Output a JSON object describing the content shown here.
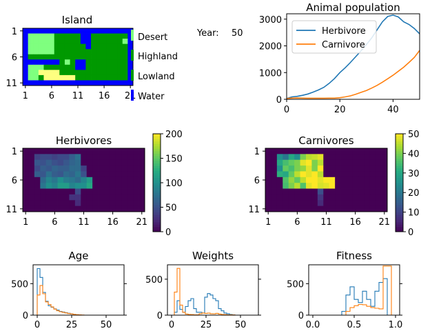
{
  "island": {
    "title": "Island",
    "ytick_labels": [
      "1",
      "6",
      "11"
    ],
    "xtick_labels": [
      "1",
      "6",
      "11",
      "16",
      "21"
    ],
    "terrain_colors": {
      "W": "#0000ff",
      "D": "#7fff7f",
      "H": "#7fff7f",
      "L": "#009900",
      "S": "#ffff80"
    },
    "map": [
      "WWWWWWWWWWWWWWWWWWWWW",
      "WDDDDDLLLLLWWLLLLLLLW",
      "WDDDDDLLLLLWWLLLLLLDW",
      "WDDDDDLLLLLLWLLLLLLLW",
      "WDDDDDLLLLLLLLLLLLLLW",
      "WLLLLLLLLLLLLLLLLLLLW",
      "WWWWWWWLDLWWLLLLLLLLW",
      "WDDDLLLLLLWWLLLLLLLLW",
      "WDDSSSSLLLLLLLLLLLLLW",
      "WDDLSSSSSSLLLLLLLLLLW",
      "WWWWWWWWWWWWWWWWWWWWW"
    ]
  },
  "legend": {
    "items": [
      {
        "label": "Desert",
        "color": "#7fff7f"
      },
      {
        "label": "Highland",
        "color": "#009900"
      },
      {
        "label": "Lowland",
        "color": "#009900"
      },
      {
        "label": "Water",
        "color": "#0000ff"
      }
    ]
  },
  "year": {
    "label": "Year:",
    "value": "50"
  },
  "chart_data": [
    {
      "type": "line",
      "title": "Animal population",
      "xlim": [
        0,
        50
      ],
      "ylim": [
        0,
        3200
      ],
      "xticks": [
        0,
        20,
        40
      ],
      "yticks": [
        0,
        1000,
        2000,
        3000
      ],
      "x": [
        0,
        2,
        4,
        6,
        8,
        10,
        12,
        14,
        16,
        18,
        20,
        22,
        24,
        26,
        28,
        30,
        32,
        34,
        36,
        38,
        40,
        42,
        44,
        46,
        48,
        50
      ],
      "series": [
        {
          "name": "Herbivore",
          "color": "#1f77b4",
          "values": [
            30,
            90,
            110,
            150,
            200,
            270,
            350,
            450,
            600,
            780,
            1000,
            1180,
            1380,
            1600,
            1820,
            2050,
            2300,
            2600,
            2900,
            3100,
            3150,
            3080,
            2900,
            2800,
            2650,
            2450
          ]
        },
        {
          "name": "Carnivore",
          "color": "#ff7f0e",
          "values": [
            30,
            45,
            50,
            45,
            40,
            40,
            40,
            40,
            45,
            45,
            60,
            90,
            130,
            190,
            260,
            330,
            420,
            520,
            640,
            770,
            900,
            1050,
            1200,
            1380,
            1570,
            1830
          ]
        }
      ]
    },
    {
      "type": "heatmap",
      "title": "Herbivores",
      "vmin": 0,
      "vmax": 200,
      "colorbar_ticks": [
        "0",
        "50",
        "100",
        "150",
        "200"
      ],
      "ytick_labels": [
        "1",
        "6",
        "11"
      ],
      "xtick_labels": [
        "1",
        "6",
        "11",
        "16",
        "21"
      ],
      "rows": [
        [
          0,
          0,
          0,
          0,
          0,
          0,
          0,
          0,
          0,
          0,
          0,
          0,
          0,
          0,
          0,
          0,
          0,
          0,
          0,
          0,
          0
        ],
        [
          0,
          0,
          40,
          45,
          45,
          40,
          45,
          45,
          60,
          75,
          0,
          0,
          0,
          0,
          0,
          0,
          0,
          0,
          0,
          0,
          0
        ],
        [
          0,
          0,
          55,
          50,
          60,
          50,
          45,
          55,
          65,
          70,
          0,
          0,
          0,
          0,
          0,
          0,
          0,
          0,
          0,
          0,
          0
        ],
        [
          0,
          0,
          45,
          60,
          55,
          65,
          60,
          60,
          70,
          70,
          40,
          0,
          0,
          0,
          0,
          0,
          0,
          0,
          0,
          0,
          0
        ],
        [
          0,
          0,
          60,
          55,
          75,
          60,
          55,
          70,
          65,
          80,
          50,
          0,
          0,
          0,
          0,
          0,
          0,
          0,
          0,
          0,
          0
        ],
        [
          0,
          0,
          0,
          70,
          90,
          80,
          100,
          85,
          80,
          70,
          90,
          110,
          0,
          0,
          0,
          0,
          0,
          0,
          0,
          0,
          0
        ],
        [
          0,
          0,
          0,
          80,
          100,
          90,
          110,
          110,
          90,
          100,
          100,
          120,
          0,
          0,
          0,
          0,
          0,
          0,
          0,
          0,
          0
        ],
        [
          0,
          0,
          0,
          0,
          0,
          0,
          0,
          0,
          0,
          45,
          0,
          0,
          0,
          0,
          0,
          0,
          0,
          0,
          0,
          0,
          0
        ],
        [
          0,
          0,
          0,
          0,
          0,
          0,
          0,
          0,
          30,
          30,
          0,
          0,
          0,
          0,
          0,
          0,
          0,
          0,
          0,
          0,
          0
        ],
        [
          0,
          0,
          0,
          0,
          0,
          0,
          0,
          0,
          0,
          25,
          0,
          0,
          0,
          0,
          0,
          0,
          0,
          0,
          0,
          0,
          0
        ],
        [
          0,
          0,
          0,
          0,
          0,
          0,
          0,
          0,
          0,
          0,
          0,
          0,
          0,
          0,
          0,
          0,
          0,
          0,
          0,
          0,
          0
        ]
      ]
    },
    {
      "type": "heatmap",
      "title": "Carnivores",
      "vmin": 0,
      "vmax": 50,
      "colorbar_ticks": [
        "0",
        "10",
        "20",
        "30",
        "40",
        "50"
      ],
      "ytick_labels": [
        "1",
        "6",
        "11"
      ],
      "xtick_labels": [
        "1",
        "6",
        "11",
        "16",
        "21"
      ],
      "rows": [
        [
          0,
          0,
          0,
          0,
          0,
          0,
          0,
          0,
          0,
          0,
          0,
          0,
          0,
          0,
          0,
          0,
          0,
          0,
          0,
          0,
          0
        ],
        [
          0,
          0,
          25,
          20,
          30,
          25,
          40,
          45,
          46,
          48,
          0,
          0,
          0,
          0,
          0,
          0,
          0,
          0,
          0,
          0,
          0
        ],
        [
          0,
          0,
          30,
          35,
          38,
          40,
          48,
          50,
          40,
          45,
          0,
          0,
          0,
          0,
          0,
          0,
          0,
          0,
          0,
          0,
          0
        ],
        [
          0,
          0,
          25,
          38,
          35,
          40,
          42,
          48,
          40,
          50,
          0,
          0,
          0,
          0,
          0,
          0,
          0,
          0,
          0,
          0,
          0
        ],
        [
          0,
          0,
          32,
          30,
          38,
          45,
          50,
          48,
          50,
          45,
          0,
          0,
          0,
          0,
          0,
          0,
          0,
          0,
          0,
          0,
          0
        ],
        [
          0,
          0,
          0,
          36,
          42,
          38,
          45,
          50,
          50,
          48,
          50,
          50,
          0,
          0,
          0,
          0,
          0,
          0,
          0,
          0,
          0
        ],
        [
          0,
          0,
          0,
          35,
          40,
          45,
          36,
          48,
          50,
          47,
          48,
          50,
          0,
          0,
          0,
          0,
          0,
          0,
          0,
          0,
          0
        ],
        [
          0,
          0,
          0,
          0,
          0,
          0,
          0,
          0,
          0,
          12,
          0,
          0,
          0,
          0,
          0,
          0,
          0,
          0,
          0,
          0,
          0
        ],
        [
          0,
          0,
          0,
          0,
          0,
          0,
          0,
          0,
          0,
          8,
          0,
          0,
          0,
          0,
          0,
          0,
          0,
          0,
          0,
          0,
          0
        ],
        [
          0,
          0,
          0,
          0,
          0,
          0,
          0,
          0,
          0,
          6,
          0,
          0,
          0,
          0,
          0,
          0,
          0,
          0,
          0,
          0,
          0
        ],
        [
          0,
          0,
          0,
          0,
          0,
          0,
          0,
          0,
          0,
          0,
          0,
          0,
          0,
          0,
          0,
          0,
          0,
          0,
          0,
          0,
          0
        ]
      ]
    },
    {
      "type": "histogram",
      "title": "Age",
      "xlim": [
        -3,
        63
      ],
      "ylim": [
        0,
        800
      ],
      "xticks": [
        0,
        25,
        50
      ],
      "yticks": [
        0,
        500
      ],
      "bin_start": 0,
      "bin_width": 2,
      "series": [
        {
          "name": "Herbivore",
          "color": "#1f77b4",
          "values": [
            740,
            600,
            360,
            220,
            150,
            125,
            100,
            80,
            60,
            50,
            40,
            30,
            20,
            12,
            6,
            3,
            0
          ]
        },
        {
          "name": "Carnivore",
          "color": "#ff7f0e",
          "values": [
            320,
            470,
            340,
            210,
            170,
            130,
            95,
            70,
            55,
            45,
            35,
            25,
            20,
            12,
            8,
            5,
            2
          ]
        }
      ]
    },
    {
      "type": "histogram",
      "title": "Weights",
      "xlim": [
        -3,
        63
      ],
      "ylim": [
        0,
        700
      ],
      "xticks": [
        0,
        25,
        50
      ],
      "yticks": [
        0,
        500
      ],
      "bin_start": 2,
      "bin_width": 2,
      "series": [
        {
          "name": "Herbivore",
          "color": "#1f77b4",
          "values": [
            40,
            200,
            80,
            40,
            120,
            200,
            230,
            90,
            40,
            40,
            30,
            250,
            300,
            280,
            230,
            200,
            90,
            60,
            30,
            20,
            10,
            5
          ]
        },
        {
          "name": "Carnivore",
          "color": "#ff7f0e",
          "values": [
            320,
            650,
            140,
            40,
            15,
            10,
            8,
            5,
            5,
            20,
            30,
            25,
            28,
            20,
            18,
            25,
            15,
            10,
            8,
            5,
            5,
            3
          ]
        }
      ]
    },
    {
      "type": "histogram",
      "title": "Fitness",
      "xlim": [
        -0.05,
        1.05
      ],
      "ylim": [
        0,
        800
      ],
      "xticks": [
        0.0,
        0.5,
        1.0
      ],
      "yticks": [
        0,
        500
      ],
      "bin_start": 0.35,
      "bin_width": 0.05,
      "series": [
        {
          "name": "Herbivore",
          "color": "#1f77b4",
          "values": [
            60,
            320,
            450,
            250,
            200,
            380,
            250,
            140,
            380,
            520,
            580,
            0
          ]
        },
        {
          "name": "Carnivore",
          "color": "#ff7f0e",
          "values": [
            0,
            60,
            120,
            150,
            170,
            165,
            140,
            120,
            110,
            100,
            780,
            780
          ]
        }
      ]
    }
  ]
}
